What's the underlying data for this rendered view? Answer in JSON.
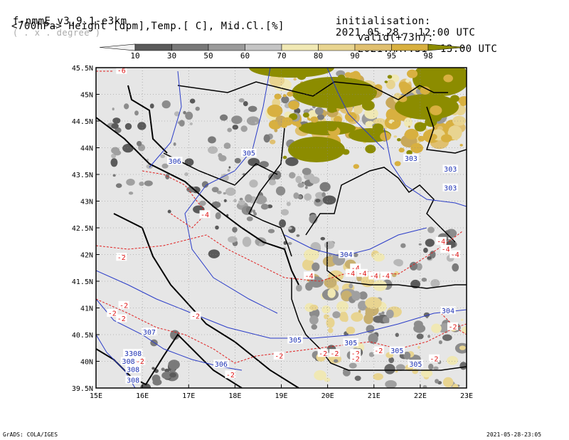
{
  "header": {
    "model": "f-nmmE_v3.9.1-e3km",
    "projection": "( . x . degree )",
    "init_label": "initialisation:",
    "init_time": "2021.05.28.  12:00 UTC",
    "valid_label": "valid(+73h):",
    "valid_time": "2021.MAY.31  13:00 UTC",
    "fields": "<700hPa> Height [dpm],Temp.[ C], Mid.Cl.[%]"
  },
  "legend": {
    "levels": [
      "10",
      "30",
      "50",
      "60",
      "70",
      "80",
      "90",
      "95",
      "98"
    ],
    "colors": [
      "#f0f0f0",
      "#5a5a5a",
      "#787878",
      "#9a9a9a",
      "#c4c4c4",
      "#f0e8b4",
      "#e8d490",
      "#e0c070",
      "#d8b040",
      "#8c8c00"
    ]
  },
  "map": {
    "lon_labels": [
      "15E",
      "16E",
      "17E",
      "18E",
      "19E",
      "20E",
      "21E",
      "22E",
      "23E"
    ],
    "lat_labels": [
      "45.5N",
      "45N",
      "44.5N",
      "44N",
      "43.5N",
      "43N",
      "42.5N",
      "42N",
      "41.5N",
      "41N",
      "40.5N",
      "40N",
      "39.5N"
    ],
    "height_labels": [
      {
        "text": "306",
        "lon": 16.7,
        "lat": 43.75
      },
      {
        "text": "305",
        "lon": 18.3,
        "lat": 43.9
      },
      {
        "text": "303",
        "lon": 21.8,
        "lat": 43.8
      },
      {
        "text": "303",
        "lon": 22.65,
        "lat": 43.6
      },
      {
        "text": "303",
        "lon": 22.65,
        "lat": 43.25
      },
      {
        "text": "304",
        "lon": 20.4,
        "lat": 42.0
      },
      {
        "text": "304",
        "lon": 22.6,
        "lat": 40.95
      },
      {
        "text": "307",
        "lon": 16.15,
        "lat": 40.55
      },
      {
        "text": "305",
        "lon": 19.3,
        "lat": 40.4
      },
      {
        "text": "305",
        "lon": 20.5,
        "lat": 40.35
      },
      {
        "text": "305",
        "lon": 21.5,
        "lat": 40.2
      },
      {
        "text": "305",
        "lon": 21.9,
        "lat": 39.95
      },
      {
        "text": "306",
        "lon": 17.7,
        "lat": 39.95
      },
      {
        "text": "3308",
        "lon": 15.8,
        "lat": 40.15
      },
      {
        "text": "308",
        "lon": 15.7,
        "lat": 40.0
      },
      {
        "text": "308",
        "lon": 15.8,
        "lat": 39.85
      },
      {
        "text": "308",
        "lon": 15.8,
        "lat": 39.65
      }
    ],
    "temp_labels": [
      {
        "text": "-6",
        "lon": 15.55,
        "lat": 45.45
      },
      {
        "text": "-4",
        "lon": 17.35,
        "lat": 42.75
      },
      {
        "text": "-2",
        "lon": 15.55,
        "lat": 41.95
      },
      {
        "text": "-2",
        "lon": 15.6,
        "lat": 41.05
      },
      {
        "text": "-2",
        "lon": 15.35,
        "lat": 40.9
      },
      {
        "text": "-2",
        "lon": 15.55,
        "lat": 40.8
      },
      {
        "text": "-2",
        "lon": 17.15,
        "lat": 40.85
      },
      {
        "text": "-2",
        "lon": 15.95,
        "lat": 40.0
      },
      {
        "text": "-2",
        "lon": 17.9,
        "lat": 39.75
      },
      {
        "text": "-2",
        "lon": 18.95,
        "lat": 40.1
      },
      {
        "text": "-2",
        "lon": 19.9,
        "lat": 40.15
      },
      {
        "text": "-2",
        "lon": 20.15,
        "lat": 40.15
      },
      {
        "text": "-2",
        "lon": 20.6,
        "lat": 40.15
      },
      {
        "text": "-2",
        "lon": 20.6,
        "lat": 40.05
      },
      {
        "text": "-2",
        "lon": 21.1,
        "lat": 40.2
      },
      {
        "text": "-2",
        "lon": 22.3,
        "lat": 40.05
      },
      {
        "text": "-2",
        "lon": 22.7,
        "lat": 40.65
      },
      {
        "text": "-4",
        "lon": 19.6,
        "lat": 41.6
      },
      {
        "text": "-4",
        "lon": 20.6,
        "lat": 41.75
      },
      {
        "text": "-4",
        "lon": 20.75,
        "lat": 41.65
      },
      {
        "text": "-4",
        "lon": 21.0,
        "lat": 41.6
      },
      {
        "text": "-4",
        "lon": 21.25,
        "lat": 41.6
      },
      {
        "text": "-4",
        "lon": 22.45,
        "lat": 42.25
      },
      {
        "text": "-4",
        "lon": 22.55,
        "lat": 42.1
      },
      {
        "text": "-4",
        "lon": 22.75,
        "lat": 42.0
      },
      {
        "text": "-4",
        "lon": 20.5,
        "lat": 41.65
      }
    ]
  },
  "footer": {
    "left": "GrADS: COLA/IGES",
    "right": "2021-05-28-23:05"
  }
}
